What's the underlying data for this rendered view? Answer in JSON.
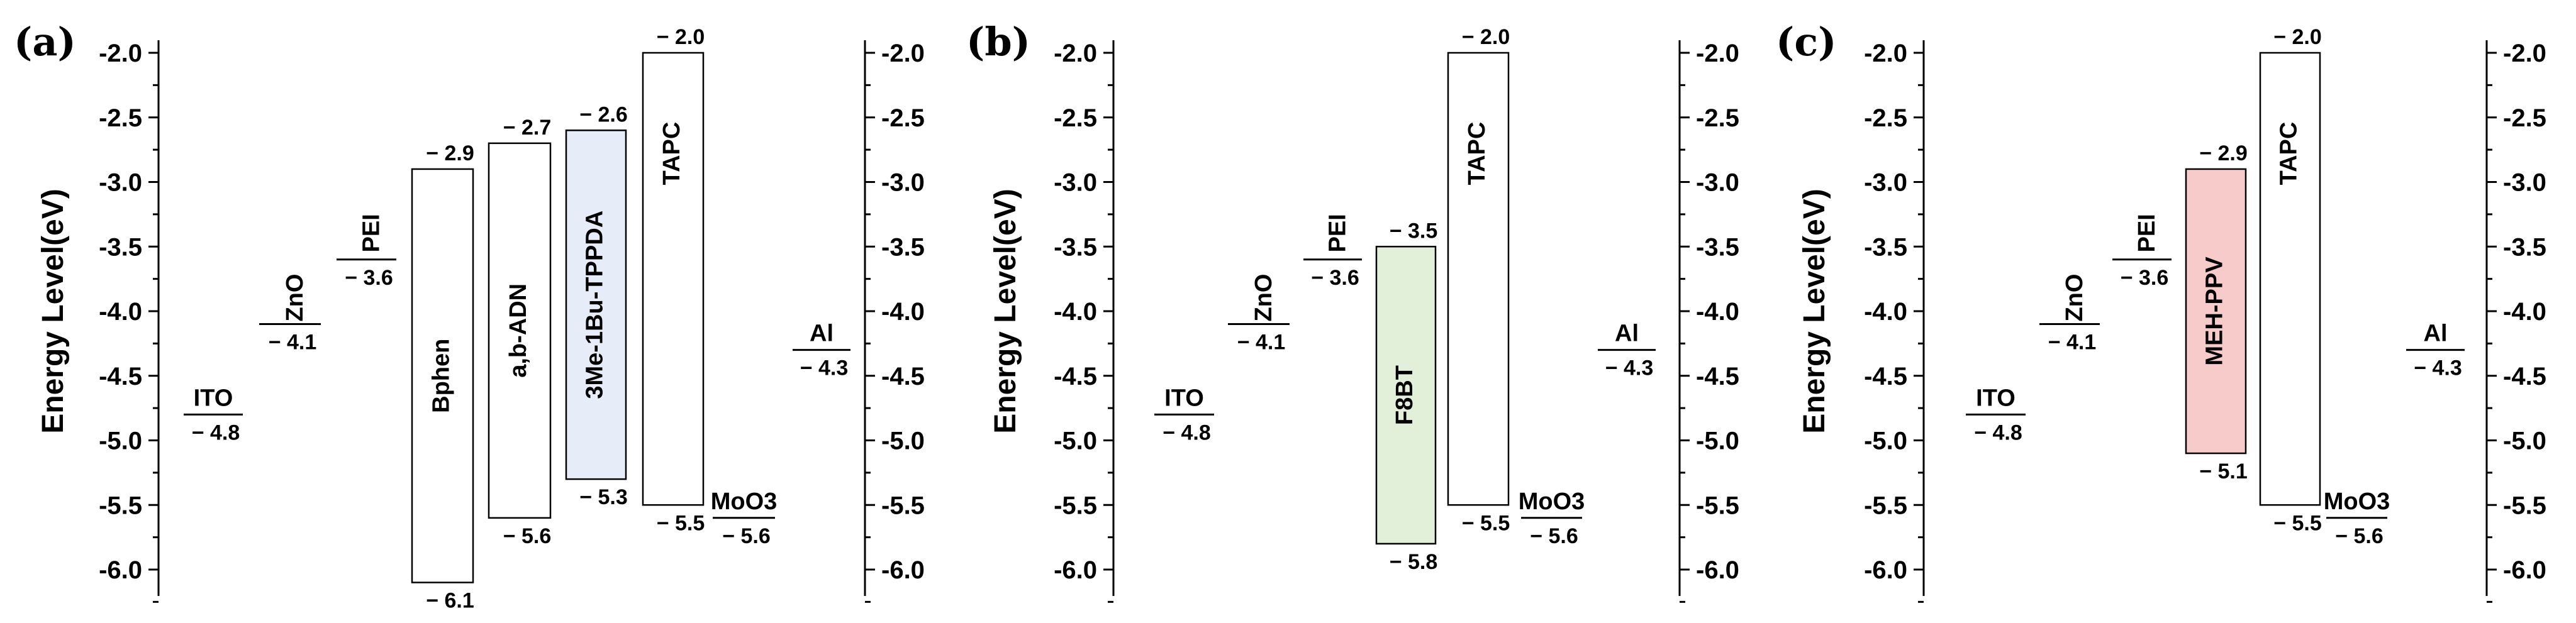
{
  "chart_data": [
    {
      "type": "energy-level-diagram",
      "panel_label": "(a)",
      "ylabel": "Energy Level(eV)",
      "ylim": [
        -6.0,
        -2.0
      ],
      "ticks": [
        "-2.0",
        "-2.5",
        "-3.0",
        "-3.5",
        "-4.0",
        "-4.5",
        "-5.0",
        "-5.5",
        "-6.0"
      ],
      "tick_values": [
        -2.0,
        -2.5,
        -3.0,
        -3.5,
        -4.0,
        -4.5,
        -5.0,
        -5.5,
        -6.0
      ],
      "levels": [
        {
          "name": "ITO",
          "value": -4.8,
          "value_label": "− 4.8"
        },
        {
          "name": "ZnO",
          "value": -4.1,
          "value_label": "− 4.1"
        },
        {
          "name": "PEI",
          "value": -3.6,
          "value_label": "− 3.6"
        },
        {
          "name": "MoO3",
          "value": -5.6,
          "value_label": "− 5.6"
        },
        {
          "name": "Al",
          "value": -4.3,
          "value_label": "− 4.3"
        }
      ],
      "boxes": [
        {
          "name": "Bphen",
          "lumo": -2.9,
          "homo": -6.1,
          "lumo_label": "− 2.9",
          "homo_label": "− 6.1",
          "fill": "#ffffff"
        },
        {
          "name": "a,b-ADN",
          "lumo": -2.7,
          "homo": -5.6,
          "lumo_label": "− 2.7",
          "homo_label": "− 5.6",
          "fill": "#ffffff"
        },
        {
          "name": "3Me-1Bu-TPPDA",
          "lumo": -2.6,
          "homo": -5.3,
          "lumo_label": "− 2.6",
          "homo_label": "− 5.3",
          "fill": "#e7edf8"
        },
        {
          "name": "TAPC",
          "lumo": -2.0,
          "homo": -5.5,
          "lumo_label": "− 2.0",
          "homo_label": "− 5.5",
          "fill": "#ffffff"
        }
      ]
    },
    {
      "type": "energy-level-diagram",
      "panel_label": "(b)",
      "ylabel": "Energy Level(eV)",
      "ylim": [
        -6.0,
        -2.0
      ],
      "ticks": [
        "-2.0",
        "-2.5",
        "-3.0",
        "-3.5",
        "-4.0",
        "-4.5",
        "-5.0",
        "-5.5",
        "-6.0"
      ],
      "tick_values": [
        -2.0,
        -2.5,
        -3.0,
        -3.5,
        -4.0,
        -4.5,
        -5.0,
        -5.5,
        -6.0
      ],
      "levels": [
        {
          "name": "ITO",
          "value": -4.8,
          "value_label": "− 4.8"
        },
        {
          "name": "ZnO",
          "value": -4.1,
          "value_label": "− 4.1"
        },
        {
          "name": "PEI",
          "value": -3.6,
          "value_label": "− 3.6"
        },
        {
          "name": "MoO3",
          "value": -5.6,
          "value_label": "− 5.6"
        },
        {
          "name": "Al",
          "value": -4.3,
          "value_label": "− 4.3"
        }
      ],
      "boxes": [
        {
          "name": "F8BT",
          "lumo": -3.5,
          "homo": -5.8,
          "lumo_label": "− 3.5",
          "homo_label": "− 5.8",
          "fill": "#e2efd9"
        },
        {
          "name": "TAPC",
          "lumo": -2.0,
          "homo": -5.5,
          "lumo_label": "− 2.0",
          "homo_label": "− 5.5",
          "fill": "#ffffff"
        }
      ]
    },
    {
      "type": "energy-level-diagram",
      "panel_label": "(c)",
      "ylabel": "Energy Level(eV)",
      "ylim": [
        -6.0,
        -2.0
      ],
      "ticks": [
        "-2.0",
        "-2.5",
        "-3.0",
        "-3.5",
        "-4.0",
        "-4.5",
        "-5.0",
        "-5.5",
        "-6.0"
      ],
      "tick_values": [
        -2.0,
        -2.5,
        -3.0,
        -3.5,
        -4.0,
        -4.5,
        -5.0,
        -5.5,
        -6.0
      ],
      "levels": [
        {
          "name": "ITO",
          "value": -4.8,
          "value_label": "− 4.8"
        },
        {
          "name": "ZnO",
          "value": -4.1,
          "value_label": "− 4.1"
        },
        {
          "name": "PEI",
          "value": -3.6,
          "value_label": "− 3.6"
        },
        {
          "name": "MoO3",
          "value": -5.6,
          "value_label": "− 5.6"
        },
        {
          "name": "Al",
          "value": -4.3,
          "value_label": "− 4.3"
        }
      ],
      "boxes": [
        {
          "name": "MEH-PPV",
          "lumo": -2.9,
          "homo": -5.1,
          "lumo_label": "− 2.9",
          "homo_label": "− 5.1",
          "fill": "#f8cbcb"
        },
        {
          "name": "TAPC",
          "lumo": -2.0,
          "homo": -5.5,
          "lumo_label": "− 2.0",
          "homo_label": "− 5.5",
          "fill": "#ffffff"
        }
      ]
    }
  ]
}
